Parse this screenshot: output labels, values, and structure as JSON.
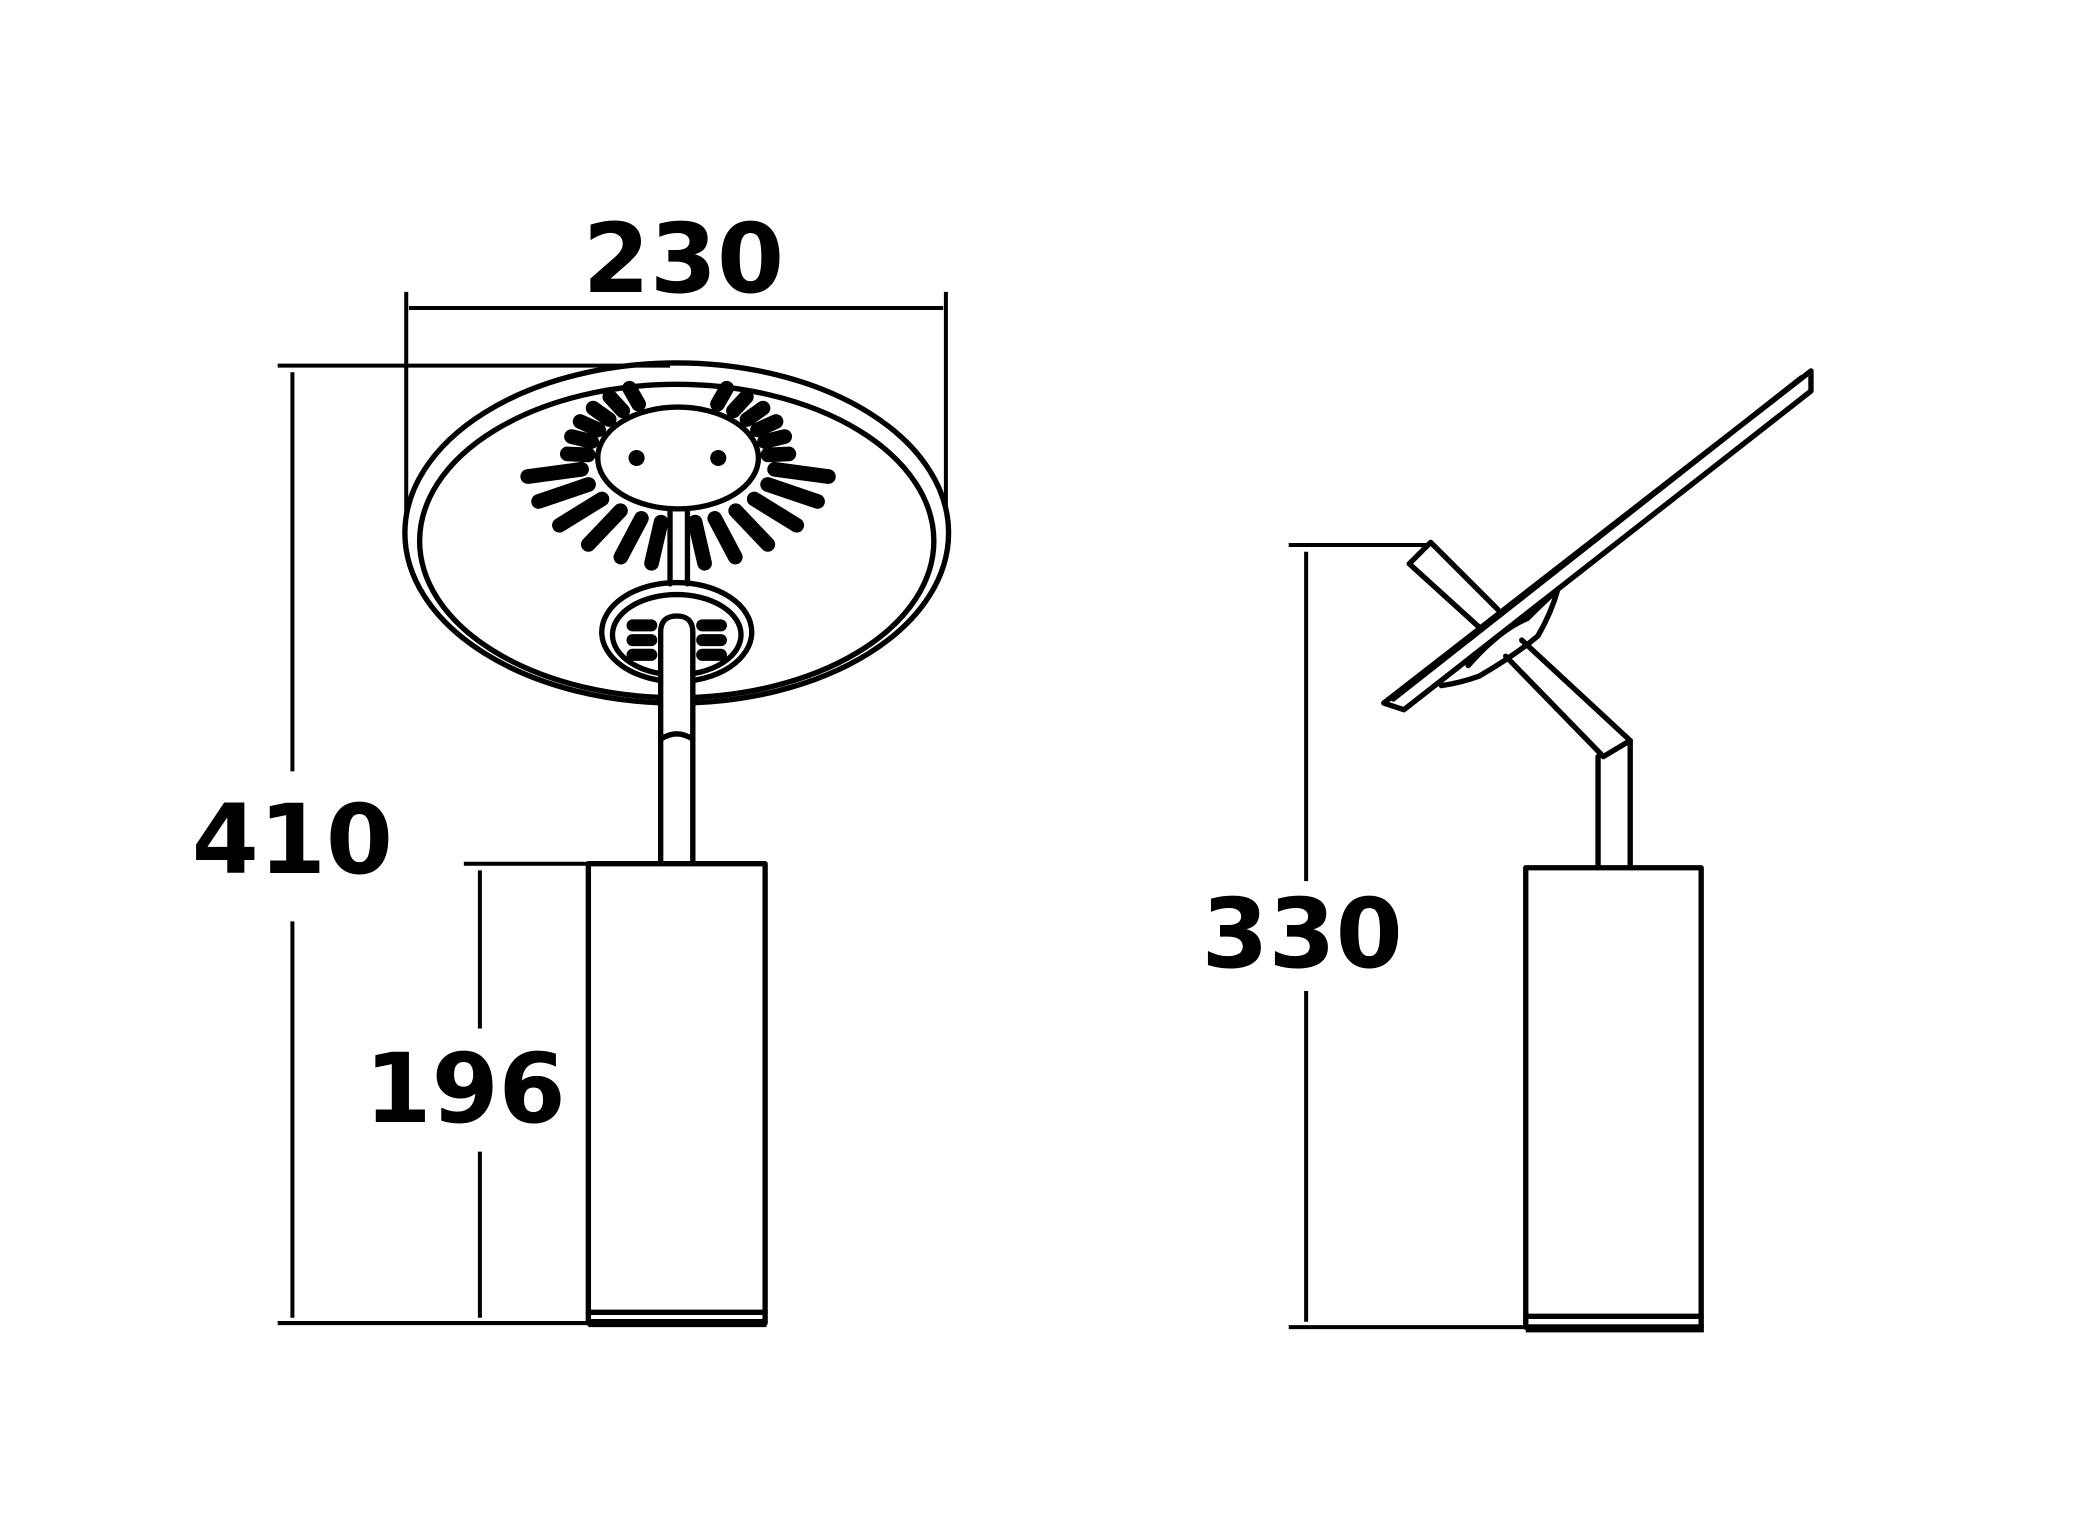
{
  "dimensions": {
    "width_front": "230",
    "height_total": "410",
    "height_base": "196",
    "height_side": "330"
  },
  "colors": {
    "line": "#000000",
    "background": "#ffffff"
  }
}
